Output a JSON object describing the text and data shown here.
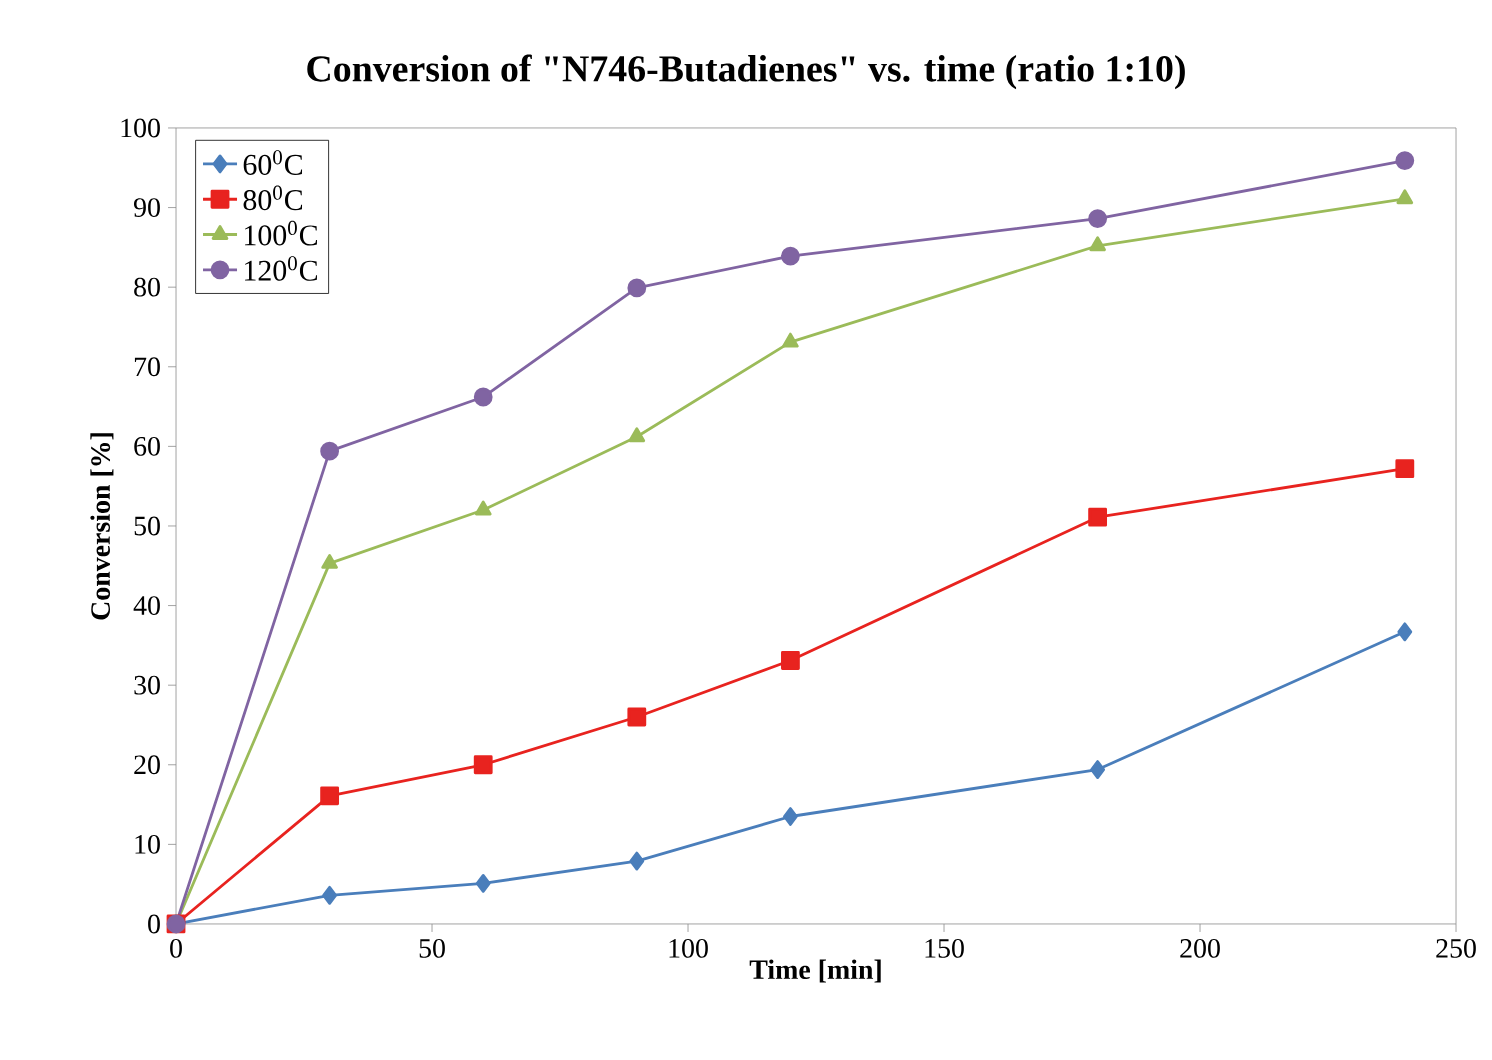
{
  "chart_data": {
    "type": "line",
    "title": "Conversion of \"N746-Butadienes\" vs. time (ratio 1:10)",
    "xlabel": "Time [min]",
    "ylabel": "Conversion [%]",
    "x": [
      0,
      30,
      60,
      90,
      120,
      180,
      240
    ],
    "series": [
      {
        "name": "60$^{0}$C",
        "color": "#4a7ebb",
        "marker": "diamond",
        "values": [
          0,
          3.6,
          5.1,
          7.9,
          13.5,
          19.4,
          36.7
        ]
      },
      {
        "name": "80$^{0}$C",
        "color": "#e8231f",
        "marker": "square",
        "values": [
          0,
          16.1,
          20.0,
          26.0,
          33.1,
          51.1,
          57.2
        ]
      },
      {
        "name": "100$^{0}$C",
        "color": "#9bbb59",
        "marker": "triangle",
        "values": [
          0,
          45.3,
          52.0,
          61.2,
          73.1,
          85.2,
          91.1
        ]
      },
      {
        "name": "120$^{0}$C",
        "color": "#8064a2",
        "marker": "circle",
        "values": [
          0,
          59.4,
          66.2,
          79.9,
          83.9,
          88.6,
          95.9
        ]
      }
    ],
    "xlim": [
      0,
      250
    ],
    "xticks": [
      0,
      50,
      100,
      150,
      200,
      250
    ],
    "ylim": [
      0,
      100
    ],
    "yticks": [
      0,
      10,
      20,
      30,
      40,
      50,
      60,
      70,
      80,
      90,
      100
    ],
    "grid": false,
    "legend": "top left",
    "line_style": "solid"
  }
}
